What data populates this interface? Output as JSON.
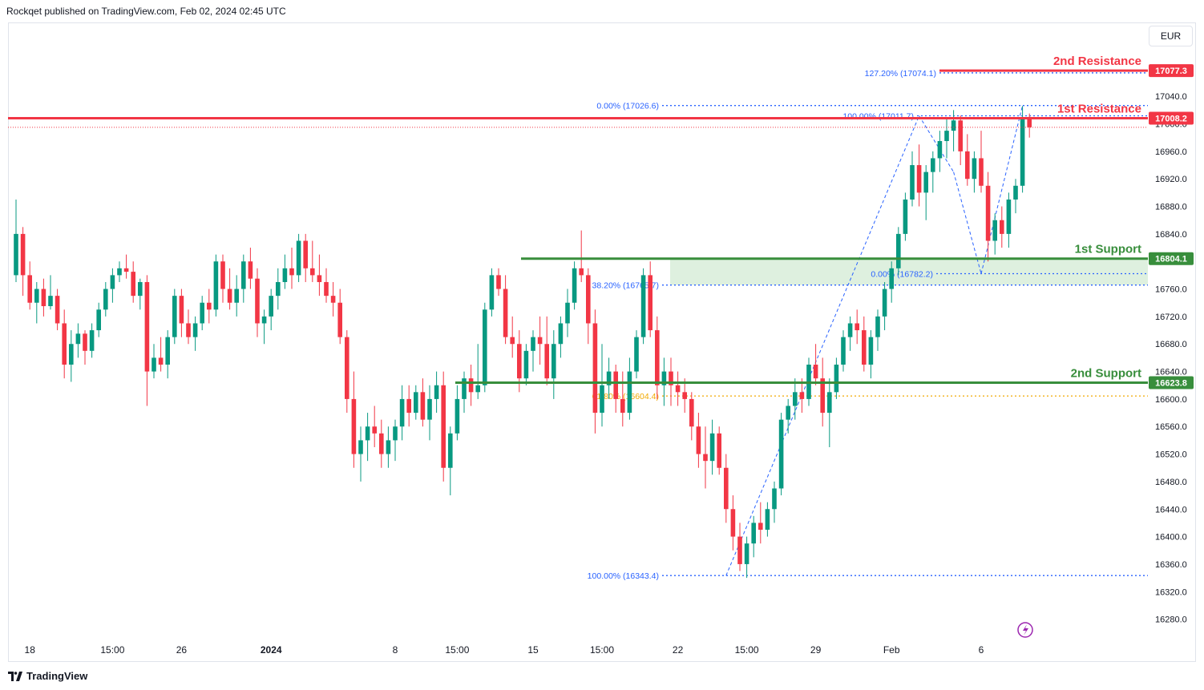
{
  "header": {
    "publisher": "Rockqet published on TradingView.com, Feb 02, 2024 02:45 UTC"
  },
  "currency": "EUR",
  "brand": "TradingView",
  "colors": {
    "up": "#089981",
    "down": "#f23645",
    "resistance": "#f23645",
    "support": "#388e3c",
    "fib_blue": "#2962ff",
    "fib_orange": "#f2a900",
    "zone_fill": "#c8e6c9"
  },
  "chart_data": {
    "type": "candlestick",
    "ylim": [
      16240,
      17130
    ],
    "y_ticks": [
      16280,
      16320,
      16360,
      16400,
      16440,
      16480,
      16520,
      16560,
      16600,
      16640,
      16680,
      16720,
      16760,
      16800,
      16840,
      16880,
      16920,
      16960,
      17000,
      17040
    ],
    "x_ticks": [
      {
        "label": "18",
        "i": 2
      },
      {
        "label": "15:00",
        "i": 14
      },
      {
        "label": "26",
        "i": 24
      },
      {
        "label": "2024",
        "i": 37,
        "bold": true
      },
      {
        "label": "8",
        "i": 55
      },
      {
        "label": "15:00",
        "i": 64
      },
      {
        "label": "15",
        "i": 75
      },
      {
        "label": "15:00",
        "i": 85
      },
      {
        "label": "22",
        "i": 96
      },
      {
        "label": "15:00",
        "i": 106
      },
      {
        "label": "29",
        "i": 116
      },
      {
        "label": "Feb",
        "i": 127
      },
      {
        "label": "6",
        "i": 140
      }
    ],
    "candles": [
      [
        16780,
        16890,
        16770,
        16840
      ],
      [
        16840,
        16850,
        16750,
        16780
      ],
      [
        16780,
        16800,
        16730,
        16740
      ],
      [
        16740,
        16770,
        16710,
        16760
      ],
      [
        16760,
        16775,
        16720,
        16735
      ],
      [
        16735,
        16780,
        16730,
        16750
      ],
      [
        16750,
        16760,
        16700,
        16710
      ],
      [
        16710,
        16730,
        16630,
        16650
      ],
      [
        16650,
        16700,
        16625,
        16680
      ],
      [
        16680,
        16710,
        16660,
        16695
      ],
      [
        16695,
        16700,
        16650,
        16670
      ],
      [
        16670,
        16710,
        16660,
        16700
      ],
      [
        16700,
        16740,
        16690,
        16730
      ],
      [
        16730,
        16770,
        16720,
        16760
      ],
      [
        16760,
        16790,
        16740,
        16780
      ],
      [
        16780,
        16800,
        16770,
        16790
      ],
      [
        16790,
        16810,
        16775,
        16785
      ],
      [
        16785,
        16800,
        16740,
        16750
      ],
      [
        16750,
        16775,
        16730,
        16770
      ],
      [
        16770,
        16780,
        16590,
        16640
      ],
      [
        16640,
        16680,
        16630,
        16660
      ],
      [
        16660,
        16690,
        16640,
        16650
      ],
      [
        16650,
        16700,
        16630,
        16690
      ],
      [
        16690,
        16760,
        16680,
        16750
      ],
      [
        16750,
        16760,
        16690,
        16710
      ],
      [
        16710,
        16730,
        16680,
        16690
      ],
      [
        16690,
        16720,
        16670,
        16710
      ],
      [
        16710,
        16750,
        16700,
        16740
      ],
      [
        16740,
        16760,
        16710,
        16730
      ],
      [
        16730,
        16810,
        16720,
        16800
      ],
      [
        16800,
        16810,
        16740,
        16760
      ],
      [
        16760,
        16790,
        16730,
        16740
      ],
      [
        16740,
        16780,
        16720,
        16760
      ],
      [
        16760,
        16810,
        16740,
        16800
      ],
      [
        16800,
        16820,
        16760,
        16775
      ],
      [
        16775,
        16790,
        16690,
        16710
      ],
      [
        16710,
        16730,
        16680,
        16720
      ],
      [
        16720,
        16760,
        16700,
        16750
      ],
      [
        16750,
        16790,
        16730,
        16770
      ],
      [
        16770,
        16810,
        16760,
        16790
      ],
      [
        16790,
        16820,
        16760,
        16780
      ],
      [
        16780,
        16840,
        16770,
        16830
      ],
      [
        16830,
        16840,
        16770,
        16790
      ],
      [
        16790,
        16830,
        16770,
        16780
      ],
      [
        16780,
        16810,
        16750,
        16770
      ],
      [
        16770,
        16790,
        16740,
        16750
      ],
      [
        16750,
        16770,
        16720,
        16740
      ],
      [
        16740,
        16760,
        16680,
        16690
      ],
      [
        16690,
        16700,
        16580,
        16600
      ],
      [
        16600,
        16640,
        16500,
        16520
      ],
      [
        16520,
        16560,
        16480,
        16540
      ],
      [
        16540,
        16580,
        16510,
        16560
      ],
      [
        16560,
        16590,
        16530,
        16550
      ],
      [
        16550,
        16570,
        16500,
        16520
      ],
      [
        16520,
        16560,
        16500,
        16540
      ],
      [
        16540,
        16570,
        16510,
        16560
      ],
      [
        16560,
        16620,
        16540,
        16600
      ],
      [
        16600,
        16620,
        16560,
        16580
      ],
      [
        16580,
        16620,
        16570,
        16610
      ],
      [
        16610,
        16630,
        16560,
        16570
      ],
      [
        16570,
        16620,
        16540,
        16600
      ],
      [
        16600,
        16640,
        16580,
        16620
      ],
      [
        16620,
        16640,
        16480,
        16500
      ],
      [
        16500,
        16560,
        16460,
        16550
      ],
      [
        16550,
        16620,
        16540,
        16600
      ],
      [
        16600,
        16640,
        16580,
        16630
      ],
      [
        16630,
        16650,
        16590,
        16610
      ],
      [
        16610,
        16680,
        16600,
        16620
      ],
      [
        16620,
        16740,
        16610,
        16730
      ],
      [
        16730,
        16790,
        16720,
        16780
      ],
      [
        16780,
        16790,
        16750,
        16760
      ],
      [
        16760,
        16780,
        16680,
        16690
      ],
      [
        16690,
        16720,
        16660,
        16680
      ],
      [
        16680,
        16700,
        16610,
        16630
      ],
      [
        16630,
        16680,
        16620,
        16670
      ],
      [
        16670,
        16700,
        16640,
        16690
      ],
      [
        16690,
        16720,
        16650,
        16680
      ],
      [
        16680,
        16720,
        16620,
        16630
      ],
      [
        16630,
        16700,
        16600,
        16680
      ],
      [
        16680,
        16720,
        16660,
        16710
      ],
      [
        16710,
        16760,
        16690,
        16740
      ],
      [
        16740,
        16800,
        16730,
        16790
      ],
      [
        16790,
        16845,
        16770,
        16780
      ],
      [
        16780,
        16790,
        16680,
        16710
      ],
      [
        16710,
        16730,
        16550,
        16580
      ],
      [
        16580,
        16680,
        16560,
        16620
      ],
      [
        16620,
        16660,
        16600,
        16640
      ],
      [
        16640,
        16650,
        16580,
        16600
      ],
      [
        16600,
        16640,
        16560,
        16580
      ],
      [
        16580,
        16660,
        16570,
        16640
      ],
      [
        16640,
        16700,
        16630,
        16690
      ],
      [
        16690,
        16790,
        16680,
        16780
      ],
      [
        16780,
        16800,
        16690,
        16700
      ],
      [
        16700,
        16720,
        16600,
        16620
      ],
      [
        16620,
        16660,
        16590,
        16640
      ],
      [
        16640,
        16660,
        16590,
        16620
      ],
      [
        16620,
        16640,
        16590,
        16610
      ],
      [
        16610,
        16630,
        16580,
        16600
      ],
      [
        16600,
        16610,
        16540,
        16560
      ],
      [
        16560,
        16580,
        16500,
        16520
      ],
      [
        16520,
        16560,
        16470,
        16510
      ],
      [
        16510,
        16570,
        16490,
        16550
      ],
      [
        16550,
        16560,
        16490,
        16500
      ],
      [
        16500,
        16520,
        16420,
        16440
      ],
      [
        16440,
        16460,
        16380,
        16400
      ],
      [
        16400,
        16420,
        16350,
        16360
      ],
      [
        16360,
        16400,
        16340,
        16390
      ],
      [
        16390,
        16430,
        16370,
        16420
      ],
      [
        16420,
        16450,
        16390,
        16410
      ],
      [
        16410,
        16450,
        16400,
        16440
      ],
      [
        16440,
        16480,
        16420,
        16470
      ],
      [
        16470,
        16580,
        16460,
        16570
      ],
      [
        16570,
        16600,
        16550,
        16590
      ],
      [
        16590,
        16630,
        16570,
        16610
      ],
      [
        16610,
        16630,
        16580,
        16600
      ],
      [
        16600,
        16660,
        16590,
        16650
      ],
      [
        16650,
        16680,
        16620,
        16630
      ],
      [
        16630,
        16660,
        16560,
        16580
      ],
      [
        16580,
        16630,
        16530,
        16610
      ],
      [
        16610,
        16660,
        16600,
        16650
      ],
      [
        16650,
        16700,
        16640,
        16690
      ],
      [
        16690,
        16720,
        16670,
        16710
      ],
      [
        16710,
        16730,
        16680,
        16700
      ],
      [
        16700,
        16720,
        16640,
        16650
      ],
      [
        16650,
        16700,
        16630,
        16690
      ],
      [
        16690,
        16730,
        16670,
        16720
      ],
      [
        16720,
        16770,
        16700,
        16760
      ],
      [
        16760,
        16800,
        16740,
        16790
      ],
      [
        16790,
        16850,
        16780,
        16840
      ],
      [
        16840,
        16900,
        16830,
        16890
      ],
      [
        16890,
        16960,
        16880,
        16940
      ],
      [
        16940,
        16970,
        16880,
        16900
      ],
      [
        16900,
        16940,
        16860,
        16930
      ],
      [
        16930,
        16960,
        16900,
        16950
      ],
      [
        16950,
        16990,
        16930,
        16975
      ],
      [
        16975,
        17010,
        16950,
        16990
      ],
      [
        16990,
        17020,
        16960,
        17005
      ],
      [
        17005,
        17012,
        16940,
        16960
      ],
      [
        16960,
        16985,
        16910,
        16920
      ],
      [
        16920,
        16960,
        16900,
        16950
      ],
      [
        16950,
        16990,
        16900,
        16910
      ],
      [
        16910,
        16930,
        16800,
        16830
      ],
      [
        16830,
        16870,
        16810,
        16860
      ],
      [
        16860,
        16880,
        16820,
        16840
      ],
      [
        16840,
        16900,
        16820,
        16890
      ],
      [
        16890,
        16920,
        16870,
        16910
      ],
      [
        16910,
        17026,
        16900,
        17010
      ],
      [
        17010,
        17015,
        16980,
        16995
      ]
    ],
    "levels": {
      "resistance_2": {
        "label": "2nd Resistance",
        "price": 17077.3,
        "tag": "17077.3"
      },
      "resistance_1": {
        "label": "1st Resistance",
        "price": 17008.2,
        "tag": "17008.2"
      },
      "support_1": {
        "label": "1st Support",
        "price": 16804.1,
        "tag": "16804.1"
      },
      "support_2": {
        "label": "2nd Support",
        "price": 16623.8,
        "tag": "16623.8"
      }
    },
    "fib_labels": [
      {
        "text": "127.20% (17074.1)",
        "price": 17074.1,
        "color": "#2962ff"
      },
      {
        "text": "0.00% (17026.6)",
        "price": 17026.6,
        "color": "#2962ff"
      },
      {
        "text": "100.00% (17011.7)",
        "price": 17011.7,
        "color": "#2962ff"
      },
      {
        "text": "0.00% (16782.2)",
        "price": 16782.2,
        "color": "#2962ff"
      },
      {
        "text": "38.20% (16765.7)",
        "price": 16765.7,
        "color": "#2962ff"
      },
      {
        "text": "61.80% (16604.4)",
        "price": 16604.4,
        "color": "#f2a900"
      },
      {
        "text": "100.00% (16343.4)",
        "price": 16343.4,
        "color": "#2962ff"
      }
    ],
    "fib_swings": [
      {
        "from_i": 103,
        "from_price": 16343.4,
        "to_i": 131,
        "to_price": 17011.7
      },
      {
        "from_i": 131,
        "from_price": 17011.7,
        "to_i": 136,
        "to_price": 16930
      },
      {
        "from_i": 136,
        "from_price": 16930,
        "to_i": 140,
        "to_price": 16782.2
      },
      {
        "from_i": 140,
        "from_price": 16782.2,
        "to_i": 146,
        "to_price": 17026.6
      }
    ],
    "current_price": 16995
  }
}
